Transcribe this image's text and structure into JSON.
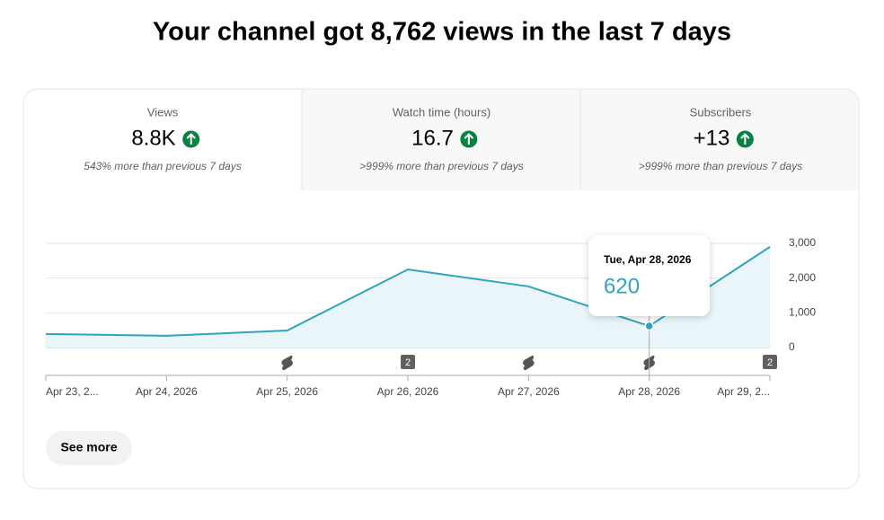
{
  "header": {
    "title": "Your channel got 8,762 views in the last 7 days"
  },
  "tabs": [
    {
      "label": "Views",
      "value": "8.8K",
      "note": "543% more than previous 7 days"
    },
    {
      "label": "Watch time (hours)",
      "value": "16.7",
      "note": ">999% more than previous 7 days"
    },
    {
      "label": "Subscribers",
      "value": "+13",
      "note": ">999% more than previous 7 days"
    }
  ],
  "chart_data": {
    "type": "line",
    "categories": [
      "Apr 23, 2...",
      "Apr 24, 2026",
      "Apr 25, 2026",
      "Apr 26, 2026",
      "Apr 27, 2026",
      "Apr 28, 2026",
      "Apr 29, 2..."
    ],
    "series": [
      {
        "name": "Views",
        "color": "#2fa3bf",
        "values": [
          390,
          340,
          490,
          2250,
          1760,
          620,
          2900
        ]
      }
    ],
    "badges": [
      null,
      null,
      null,
      "2",
      null,
      null,
      "2"
    ],
    "ylim": [
      0,
      3000
    ],
    "yticks": [
      0,
      {
        "value": 1000,
        "label": "1,000"
      },
      {
        "value": 2000,
        "label": "2,000"
      },
      {
        "value": 3000,
        "label": "3,000"
      }
    ],
    "grid": true,
    "tooltip": {
      "date": "Tue, Apr 28, 2026"
    }
  },
  "button": {
    "label": "See more"
  }
}
